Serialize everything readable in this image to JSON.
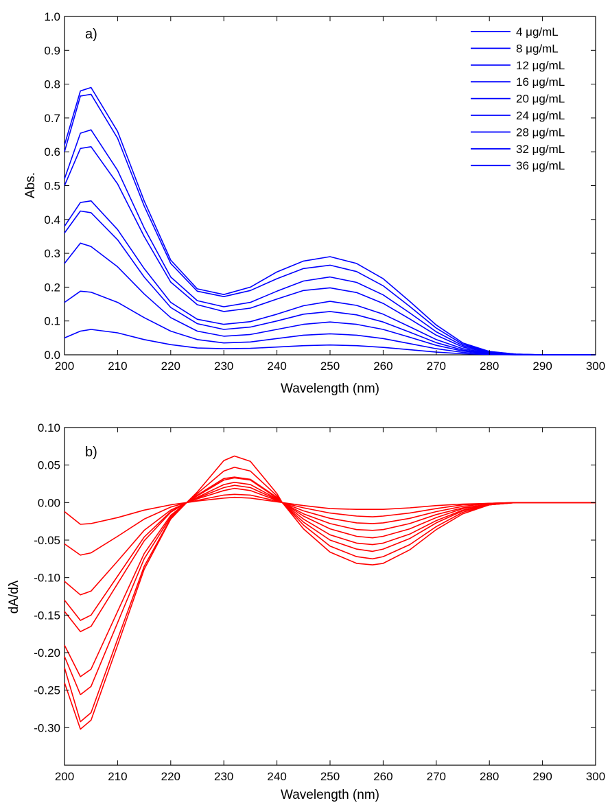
{
  "chart_data": [
    {
      "type": "line",
      "panel_label": "a)",
      "title": "",
      "xlabel": "Wavelength (nm)",
      "ylabel": "Abs.",
      "xlim": [
        200,
        300
      ],
      "ylim": [
        0,
        1.0
      ],
      "xticks": [
        "200",
        "210",
        "220",
        "230",
        "240",
        "250",
        "260",
        "270",
        "280",
        "290",
        "300"
      ],
      "yticks": [
        "0.0",
        "0.1",
        "0.2",
        "0.3",
        "0.4",
        "0.5",
        "0.6",
        "0.7",
        "0.8",
        "0.9",
        "1.0"
      ],
      "grid": false,
      "legend_position": "top-right",
      "color": "#0000ff",
      "x": [
        200,
        203,
        205,
        210,
        215,
        220,
        225,
        230,
        235,
        240,
        245,
        250,
        255,
        260,
        265,
        270,
        275,
        280,
        285,
        290,
        300
      ],
      "series": [
        {
          "name": "4 μg/mL",
          "values": [
            0.05,
            0.07,
            0.075,
            0.065,
            0.045,
            0.03,
            0.02,
            0.018,
            0.019,
            0.023,
            0.027,
            0.029,
            0.027,
            0.022,
            0.015,
            0.008,
            0.003,
            0.001,
            0.0,
            0.0,
            0.0
          ]
        },
        {
          "name": "8 μg/mL",
          "values": [
            0.155,
            0.188,
            0.185,
            0.155,
            0.11,
            0.07,
            0.045,
            0.035,
            0.038,
            0.048,
            0.058,
            0.062,
            0.058,
            0.048,
            0.033,
            0.018,
            0.007,
            0.002,
            0.0,
            0.0,
            0.0
          ]
        },
        {
          "name": "12 μg/mL",
          "values": [
            0.27,
            0.33,
            0.32,
            0.26,
            0.18,
            0.11,
            0.07,
            0.055,
            0.06,
            0.075,
            0.09,
            0.097,
            0.09,
            0.075,
            0.052,
            0.028,
            0.011,
            0.003,
            0.001,
            0.0,
            0.0
          ]
        },
        {
          "name": "16 μg/mL",
          "values": [
            0.36,
            0.425,
            0.42,
            0.34,
            0.23,
            0.14,
            0.092,
            0.075,
            0.082,
            0.1,
            0.12,
            0.128,
            0.118,
            0.097,
            0.067,
            0.036,
            0.014,
            0.004,
            0.001,
            0.0,
            0.0
          ]
        },
        {
          "name": "20 μg/mL",
          "values": [
            0.38,
            0.45,
            0.455,
            0.37,
            0.255,
            0.155,
            0.105,
            0.09,
            0.098,
            0.12,
            0.145,
            0.158,
            0.146,
            0.12,
            0.083,
            0.045,
            0.018,
            0.005,
            0.001,
            0.0,
            0.0
          ]
        },
        {
          "name": "24 μg/mL",
          "values": [
            0.5,
            0.61,
            0.615,
            0.505,
            0.35,
            0.215,
            0.148,
            0.128,
            0.138,
            0.165,
            0.19,
            0.198,
            0.184,
            0.152,
            0.106,
            0.058,
            0.023,
            0.006,
            0.001,
            0.0,
            0.0
          ]
        },
        {
          "name": "28 μg/mL",
          "values": [
            0.52,
            0.655,
            0.665,
            0.545,
            0.375,
            0.23,
            0.16,
            0.142,
            0.155,
            0.188,
            0.218,
            0.23,
            0.214,
            0.177,
            0.124,
            0.068,
            0.027,
            0.008,
            0.002,
            0.0,
            0.0
          ]
        },
        {
          "name": "32 μg/mL",
          "values": [
            0.6,
            0.765,
            0.77,
            0.64,
            0.44,
            0.27,
            0.188,
            0.172,
            0.19,
            0.225,
            0.255,
            0.265,
            0.246,
            0.204,
            0.143,
            0.079,
            0.031,
            0.009,
            0.002,
            0.0,
            0.0
          ]
        },
        {
          "name": "36 μg/mL",
          "values": [
            0.62,
            0.78,
            0.79,
            0.66,
            0.455,
            0.28,
            0.195,
            0.178,
            0.2,
            0.245,
            0.277,
            0.29,
            0.27,
            0.225,
            0.158,
            0.088,
            0.035,
            0.01,
            0.002,
            0.0,
            0.0
          ]
        }
      ]
    },
    {
      "type": "line",
      "panel_label": "b)",
      "title": "",
      "xlabel": "Wavelength (nm)",
      "ylabel": "dA/dλ",
      "xlim": [
        200,
        300
      ],
      "ylim": [
        -0.35,
        0.1
      ],
      "xticks": [
        "200",
        "210",
        "220",
        "230",
        "240",
        "250",
        "260",
        "270",
        "280",
        "290",
        "300"
      ],
      "yticks": [
        "0.10",
        "0.05",
        "0.00",
        "-0.05",
        "-0.10",
        "-0.15",
        "-0.20",
        "-0.25",
        "-0.30"
      ],
      "grid": false,
      "color": "#ff0000",
      "x": [
        200,
        203,
        205,
        210,
        215,
        220,
        223,
        225,
        230,
        232,
        235,
        240,
        241,
        245,
        250,
        255,
        258,
        260,
        265,
        270,
        275,
        280,
        285,
        290,
        300
      ],
      "series": [
        {
          "name": "",
          "values": [
            -0.012,
            -0.029,
            -0.028,
            -0.02,
            -0.01,
            -0.003,
            0.0,
            0.002,
            0.006,
            0.007,
            0.006,
            0.001,
            0.0,
            -0.004,
            -0.008,
            -0.009,
            -0.009,
            -0.009,
            -0.007,
            -0.004,
            -0.002,
            -0.001,
            0.0,
            0.0,
            0.0
          ]
        },
        {
          "name": "",
          "values": [
            -0.055,
            -0.07,
            -0.067,
            -0.045,
            -0.022,
            -0.006,
            0.0,
            0.003,
            0.01,
            0.011,
            0.01,
            0.002,
            0.0,
            -0.007,
            -0.014,
            -0.018,
            -0.019,
            -0.018,
            -0.014,
            -0.008,
            -0.003,
            -0.001,
            0.0,
            0.0,
            0.0
          ]
        },
        {
          "name": "",
          "values": [
            -0.105,
            -0.123,
            -0.118,
            -0.078,
            -0.037,
            -0.01,
            0.0,
            0.005,
            0.016,
            0.019,
            0.016,
            0.003,
            0.0,
            -0.011,
            -0.021,
            -0.027,
            -0.028,
            -0.027,
            -0.021,
            -0.012,
            -0.005,
            -0.001,
            0.0,
            0.0,
            0.0
          ]
        },
        {
          "name": "",
          "values": [
            -0.13,
            -0.157,
            -0.15,
            -0.098,
            -0.046,
            -0.012,
            0.0,
            0.006,
            0.02,
            0.023,
            0.02,
            0.004,
            0.0,
            -0.015,
            -0.028,
            -0.036,
            -0.037,
            -0.036,
            -0.028,
            -0.016,
            -0.007,
            -0.002,
            0.0,
            0.0,
            0.0
          ]
        },
        {
          "name": "",
          "values": [
            -0.145,
            -0.172,
            -0.165,
            -0.108,
            -0.051,
            -0.013,
            0.0,
            0.007,
            0.024,
            0.027,
            0.024,
            0.005,
            0.0,
            -0.018,
            -0.035,
            -0.045,
            -0.047,
            -0.045,
            -0.035,
            -0.02,
            -0.008,
            -0.002,
            0.0,
            0.0,
            0.0
          ]
        },
        {
          "name": "",
          "values": [
            -0.19,
            -0.232,
            -0.222,
            -0.145,
            -0.068,
            -0.017,
            0.0,
            0.009,
            0.03,
            0.033,
            0.03,
            0.006,
            0.0,
            -0.022,
            -0.043,
            -0.054,
            -0.056,
            -0.054,
            -0.042,
            -0.024,
            -0.01,
            -0.002,
            0.0,
            0.0,
            0.0
          ]
        },
        {
          "name": "",
          "values": [
            -0.205,
            -0.256,
            -0.245,
            -0.16,
            -0.075,
            -0.019,
            0.0,
            0.01,
            0.032,
            0.034,
            0.031,
            0.007,
            0.0,
            -0.026,
            -0.05,
            -0.062,
            -0.065,
            -0.062,
            -0.048,
            -0.027,
            -0.011,
            -0.003,
            0.0,
            0.0,
            0.0
          ]
        },
        {
          "name": "",
          "values": [
            -0.22,
            -0.292,
            -0.28,
            -0.182,
            -0.085,
            -0.021,
            0.0,
            0.012,
            0.042,
            0.047,
            0.042,
            0.009,
            0.0,
            -0.03,
            -0.058,
            -0.072,
            -0.075,
            -0.072,
            -0.056,
            -0.032,
            -0.013,
            -0.003,
            0.0,
            0.0,
            0.0
          ]
        },
        {
          "name": "",
          "values": [
            -0.24,
            -0.302,
            -0.29,
            -0.19,
            -0.089,
            -0.022,
            0.0,
            0.014,
            0.056,
            0.062,
            0.055,
            0.012,
            0.0,
            -0.035,
            -0.066,
            -0.081,
            -0.083,
            -0.081,
            -0.063,
            -0.036,
            -0.015,
            -0.003,
            0.0,
            0.0,
            0.0
          ]
        }
      ]
    }
  ]
}
